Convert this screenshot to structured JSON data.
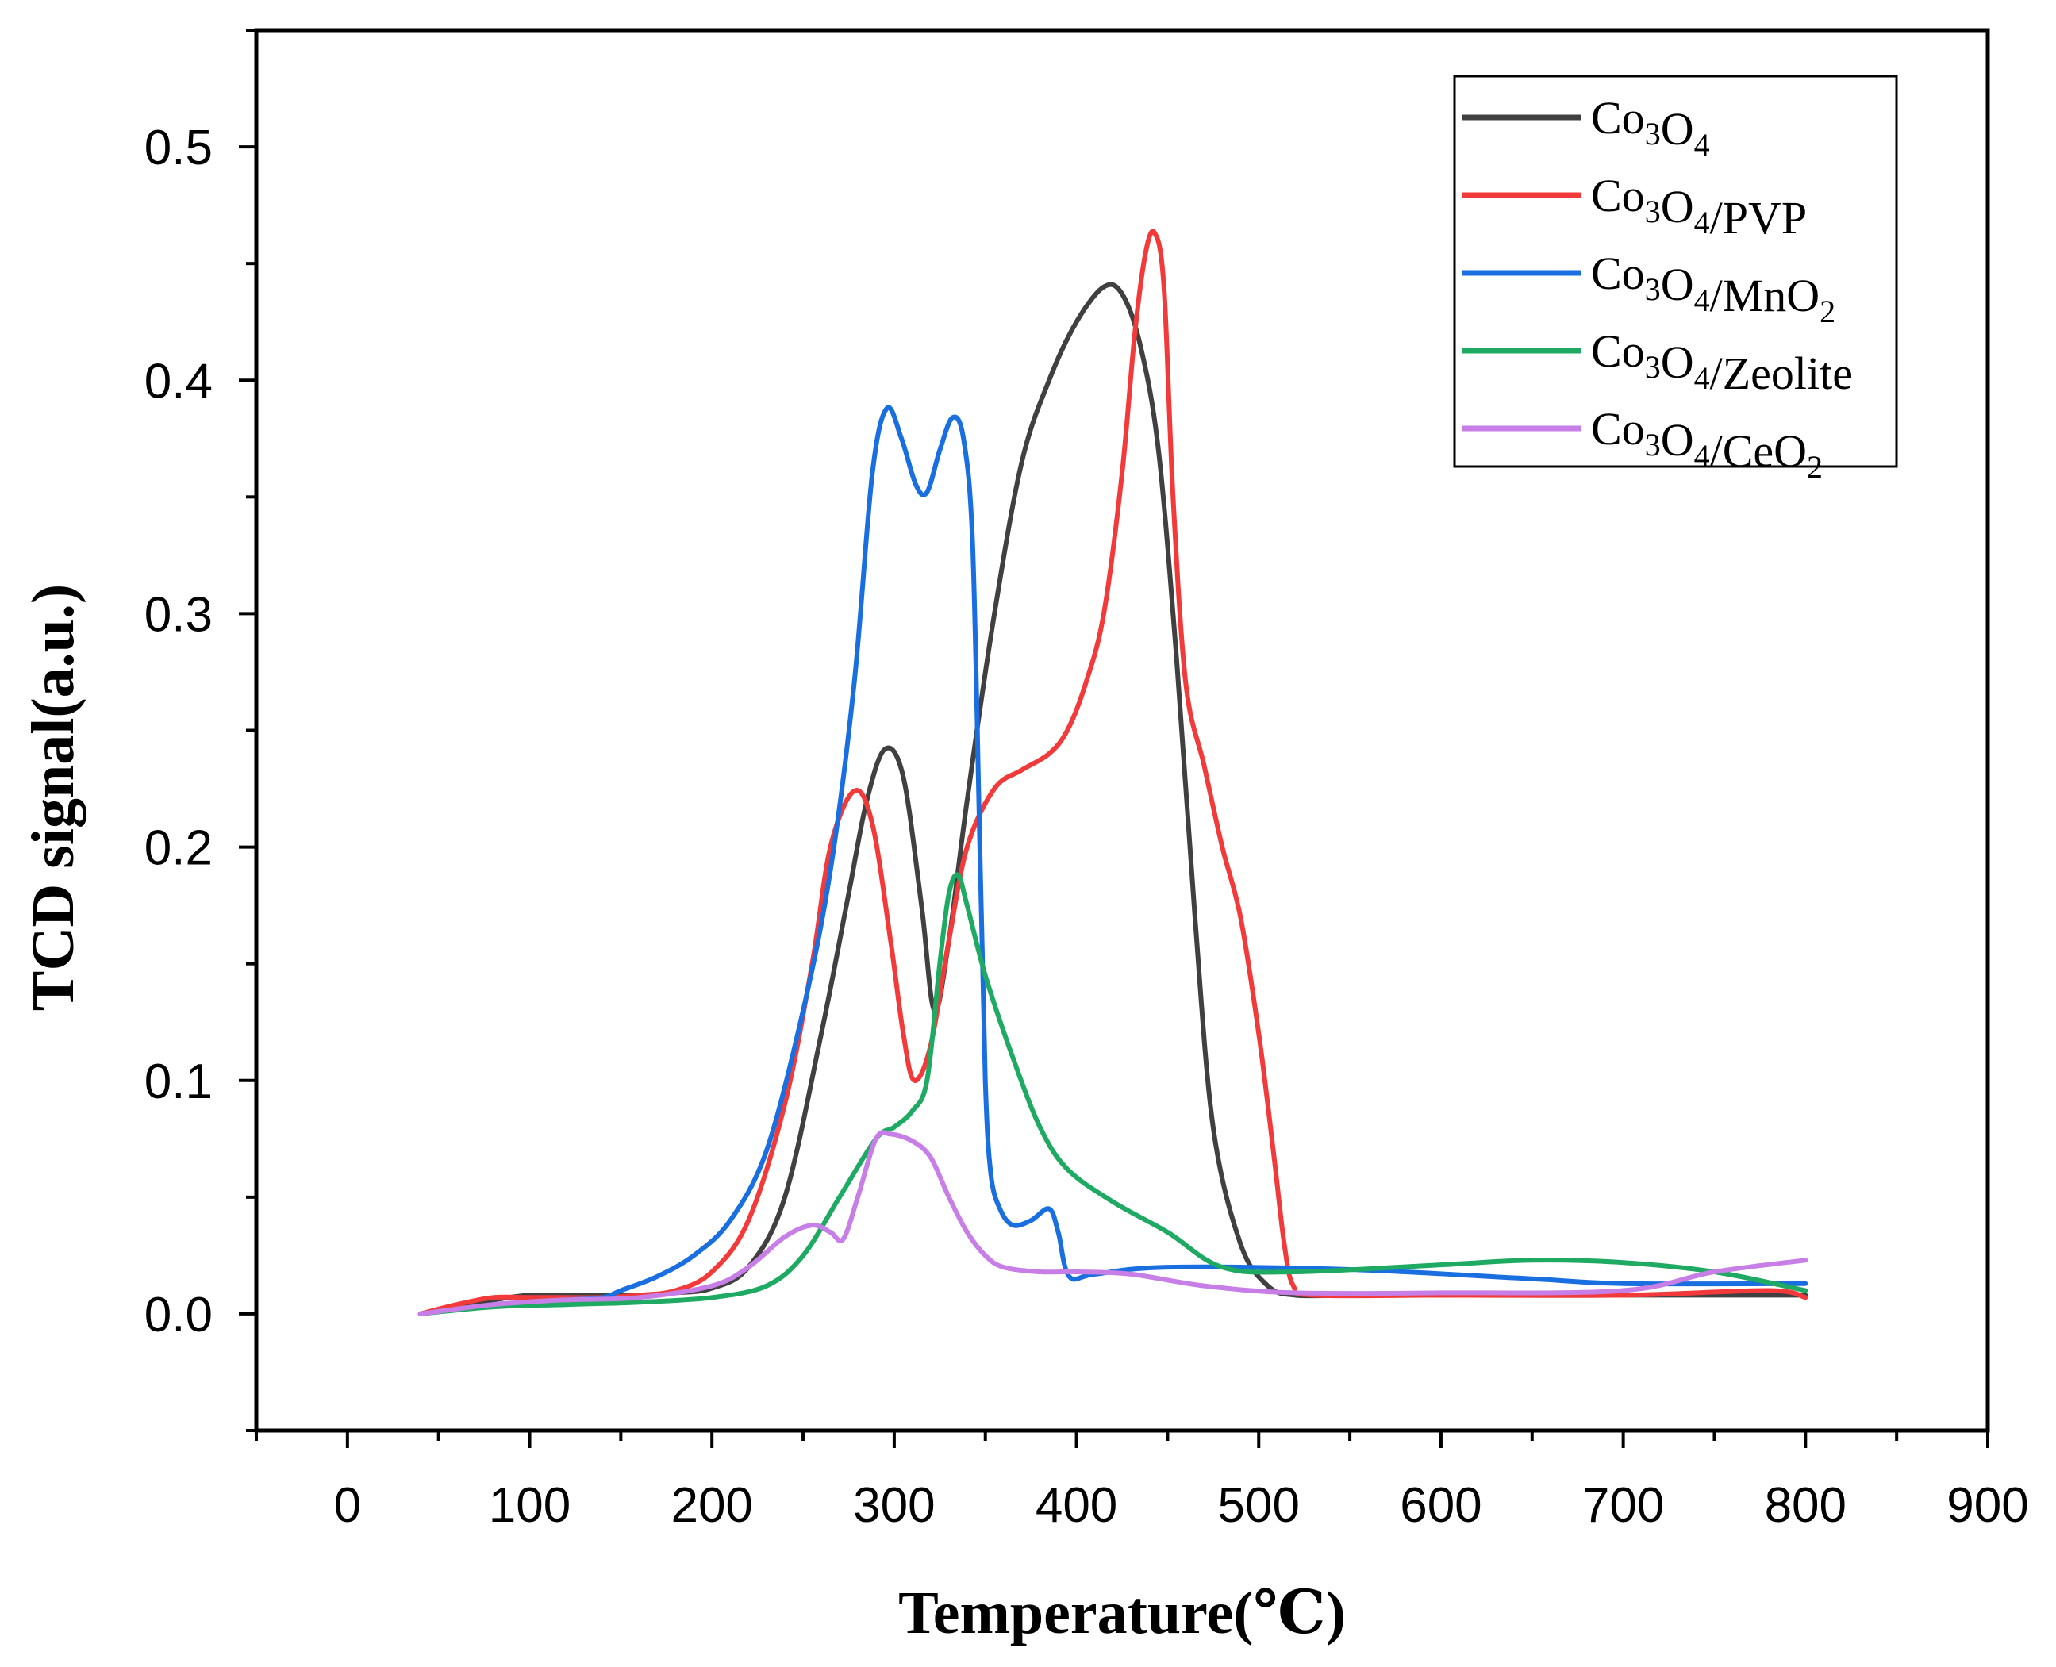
{
  "chart_data": {
    "type": "line",
    "title": "",
    "xlabel": "Temperature(℃)",
    "ylabel": "TCD signal(a.u.)",
    "xlim": [
      -50,
      900
    ],
    "ylim": [
      -0.05,
      0.55
    ],
    "xticks": [
      0,
      100,
      200,
      300,
      400,
      500,
      600,
      700,
      800,
      900
    ],
    "yticks": [
      0.0,
      0.1,
      0.2,
      0.3,
      0.4,
      0.5
    ],
    "xtick_labels": [
      "0",
      "100",
      "200",
      "300",
      "400",
      "500",
      "600",
      "700",
      "800",
      "900"
    ],
    "ytick_labels": [
      "0.0",
      "0.1",
      "0.2",
      "0.3",
      "0.4",
      "0.5"
    ],
    "legend_position": "top-right",
    "series": [
      {
        "name": "Co3O4",
        "label_base": "Co",
        "label_sub1": "3",
        "label_mid": "O",
        "label_sub2": "4",
        "label_tail": "",
        "label_sub3": "",
        "color": "#404040",
        "x": [
          40,
          60,
          80,
          100,
          120,
          140,
          160,
          180,
          200,
          220,
          240,
          260,
          275,
          285,
          295,
          305,
          315,
          322,
          330,
          340,
          355,
          370,
          385,
          400,
          415,
          425,
          435,
          445,
          455,
          465,
          475,
          490,
          505,
          520,
          550,
          600,
          700,
          800
        ],
        "y": [
          0.0,
          0.003,
          0.006,
          0.008,
          0.008,
          0.008,
          0.008,
          0.009,
          0.011,
          0.02,
          0.05,
          0.12,
          0.18,
          0.22,
          0.242,
          0.23,
          0.175,
          0.13,
          0.16,
          0.22,
          0.3,
          0.365,
          0.4,
          0.425,
          0.44,
          0.437,
          0.415,
          0.37,
          0.28,
          0.17,
          0.08,
          0.03,
          0.012,
          0.008,
          0.008,
          0.008,
          0.008,
          0.008
        ]
      },
      {
        "name": "Co3O4/PVP",
        "label_base": "Co",
        "label_sub1": "3",
        "label_mid": "O",
        "label_sub2": "4",
        "label_tail": "/PVP",
        "label_sub3": "",
        "color": "#f23a3a",
        "x": [
          40,
          60,
          80,
          100,
          120,
          140,
          160,
          180,
          200,
          220,
          240,
          255,
          265,
          278,
          288,
          298,
          305,
          311,
          320,
          330,
          340,
          355,
          370,
          385,
          395,
          405,
          415,
          425,
          432,
          438,
          443,
          448,
          453,
          460,
          470,
          480,
          490,
          500,
          508,
          514,
          519,
          530,
          600,
          700,
          780,
          800
        ],
        "y": [
          0.0,
          0.004,
          0.007,
          0.007,
          0.007,
          0.007,
          0.008,
          0.01,
          0.018,
          0.04,
          0.09,
          0.15,
          0.2,
          0.224,
          0.21,
          0.16,
          0.12,
          0.1,
          0.115,
          0.16,
          0.2,
          0.225,
          0.233,
          0.24,
          0.25,
          0.27,
          0.3,
          0.36,
          0.42,
          0.455,
          0.463,
          0.44,
          0.35,
          0.27,
          0.235,
          0.2,
          0.17,
          0.12,
          0.07,
          0.03,
          0.012,
          0.008,
          0.008,
          0.008,
          0.01,
          0.007
        ]
      },
      {
        "name": "Co3O4/MnO2",
        "label_base": "Co",
        "label_sub1": "3",
        "label_mid": "O",
        "label_sub2": "4",
        "label_tail": "/MnO",
        "label_sub3": "2",
        "color": "#1a6fe0",
        "x": [
          40,
          60,
          80,
          100,
          120,
          140,
          150,
          170,
          190,
          210,
          230,
          250,
          265,
          278,
          288,
          296,
          304,
          312,
          318,
          325,
          332,
          338,
          343,
          347,
          350,
          353,
          358,
          365,
          375,
          385,
          390,
          396,
          410,
          450,
          550,
          650,
          700,
          800
        ],
        "y": [
          0.0,
          0.002,
          0.004,
          0.005,
          0.006,
          0.007,
          0.01,
          0.016,
          0.025,
          0.04,
          0.07,
          0.13,
          0.19,
          0.27,
          0.36,
          0.388,
          0.375,
          0.355,
          0.352,
          0.37,
          0.384,
          0.375,
          0.33,
          0.2,
          0.1,
          0.06,
          0.045,
          0.038,
          0.04,
          0.045,
          0.035,
          0.016,
          0.017,
          0.02,
          0.019,
          0.015,
          0.013,
          0.013
        ]
      },
      {
        "name": "Co3O4/Zeolite",
        "label_base": "Co",
        "label_sub1": "3",
        "label_mid": "O",
        "label_sub2": "4",
        "label_tail": "/Zeolite",
        "label_sub3": "",
        "color": "#1faa63",
        "x": [
          40,
          80,
          120,
          160,
          200,
          230,
          250,
          270,
          290,
          300,
          310,
          318,
          325,
          330,
          335,
          340,
          350,
          365,
          380,
          395,
          420,
          450,
          480,
          520,
          600,
          650,
          700,
          750,
          800
        ],
        "y": [
          0.0,
          0.003,
          0.004,
          0.005,
          0.007,
          0.012,
          0.025,
          0.05,
          0.075,
          0.08,
          0.087,
          0.1,
          0.15,
          0.18,
          0.188,
          0.175,
          0.145,
          0.11,
          0.08,
          0.062,
          0.048,
          0.035,
          0.02,
          0.018,
          0.021,
          0.023,
          0.022,
          0.018,
          0.01
        ]
      },
      {
        "name": "Co3O4/CeO2",
        "label_base": "Co",
        "label_sub1": "3",
        "label_mid": "O",
        "label_sub2": "4",
        "label_tail": "/CeO",
        "label_sub3": "2",
        "color": "#c77ee6",
        "x": [
          40,
          80,
          120,
          160,
          200,
          220,
          240,
          255,
          265,
          272,
          280,
          290,
          298,
          310,
          320,
          330,
          340,
          350,
          360,
          380,
          400,
          430,
          470,
          520,
          600,
          700,
          750,
          800
        ],
        "y": [
          0.0,
          0.004,
          0.006,
          0.007,
          0.012,
          0.02,
          0.033,
          0.038,
          0.035,
          0.032,
          0.05,
          0.075,
          0.077,
          0.074,
          0.067,
          0.05,
          0.035,
          0.025,
          0.02,
          0.018,
          0.018,
          0.017,
          0.012,
          0.009,
          0.009,
          0.01,
          0.018,
          0.023
        ]
      }
    ]
  }
}
